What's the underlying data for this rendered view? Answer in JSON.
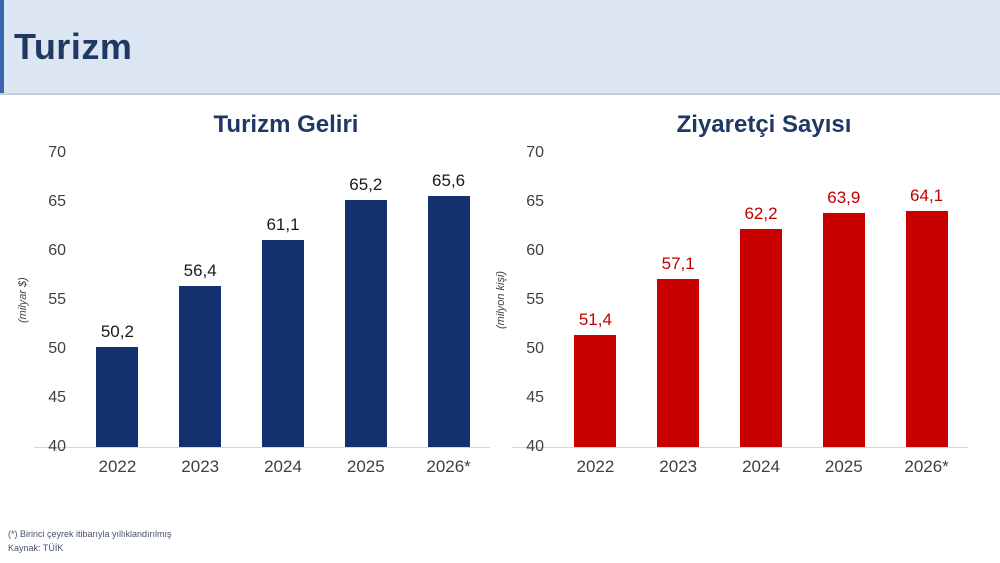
{
  "header": {
    "title": "Turizm"
  },
  "footer": {
    "note": "(*) Birinci çeyrek itibarıyla yıllıklandırılmış",
    "source": "Kaynak: TÜİK"
  },
  "colors": {
    "header_bg": "#dce6f2",
    "header_accent": "#3a66b0",
    "title_navy": "#1f3864",
    "bar_navy": "#12316e",
    "bar_red": "#c80000",
    "axis_text": "#404040"
  },
  "chart_data": [
    {
      "type": "bar",
      "title": "Turizm Geliri",
      "ylabel": "(milyar $)",
      "categories": [
        "2022",
        "2023",
        "2024",
        "2025",
        "2026*"
      ],
      "values": [
        50.2,
        56.4,
        61.1,
        65.2,
        65.6
      ],
      "value_labels": [
        "50,2",
        "56,4",
        "61,1",
        "65,2",
        "65,6"
      ],
      "ylim": [
        40,
        70
      ],
      "yticks": [
        70,
        65,
        60,
        55,
        50,
        45,
        40
      ],
      "grid": false,
      "legend": "none",
      "bar_color": "#12316e",
      "label_color": "#1a1a1a"
    },
    {
      "type": "bar",
      "title": "Ziyaretçi Sayısı",
      "ylabel": "(milyon kişi)",
      "categories": [
        "2022",
        "2023",
        "2024",
        "2025",
        "2026*"
      ],
      "values": [
        51.4,
        57.1,
        62.2,
        63.9,
        64.1
      ],
      "value_labels": [
        "51,4",
        "57,1",
        "62,2",
        "63,9",
        "64,1"
      ],
      "ylim": [
        40,
        70
      ],
      "yticks": [
        70,
        65,
        60,
        55,
        50,
        45,
        40
      ],
      "grid": false,
      "legend": "none",
      "bar_color": "#c80000",
      "label_color": "#c00000"
    }
  ]
}
